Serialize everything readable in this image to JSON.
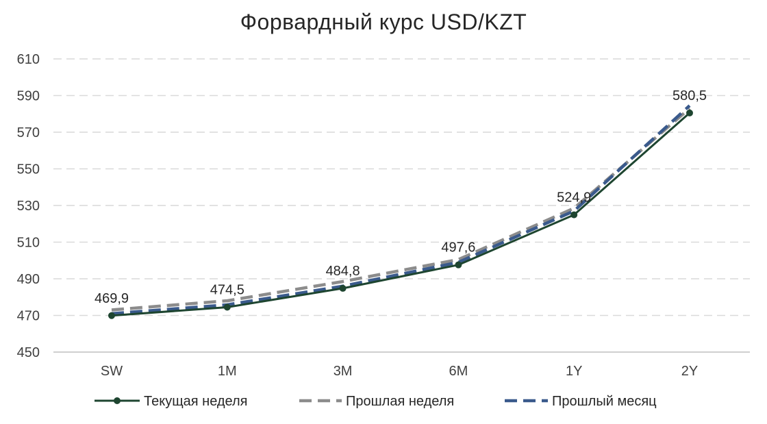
{
  "chart_data": {
    "type": "line",
    "title": "Форвардный курс USD/KZT",
    "xlabel": "",
    "ylabel": "",
    "categories": [
      "SW",
      "1M",
      "3M",
      "6M",
      "1Y",
      "2Y"
    ],
    "ylim": [
      450,
      610
    ],
    "yticks": [
      "450",
      "470",
      "490",
      "510",
      "530",
      "550",
      "570",
      "590",
      "610"
    ],
    "grid": true,
    "legend_position": "bottom",
    "series": [
      {
        "name": "Текущая неделя",
        "style": "solid-markers",
        "color": "#1e4530",
        "values": [
          469.9,
          474.5,
          484.8,
          497.6,
          524.9,
          580.5
        ],
        "labels": [
          "469,9",
          "474,5",
          "484,8",
          "497,6",
          "524,9",
          "580,5"
        ]
      },
      {
        "name": "Прошлая неделя",
        "style": "dashed",
        "color": "#8c8c8c",
        "values": [
          473.0,
          478.0,
          488.5,
          500.5,
          528.5,
          583.0
        ]
      },
      {
        "name": "Прошлый месяц",
        "style": "dashed",
        "color": "#3a5a8c",
        "values": [
          471.0,
          475.8,
          486.0,
          499.0,
          527.0,
          584.5
        ]
      }
    ]
  }
}
